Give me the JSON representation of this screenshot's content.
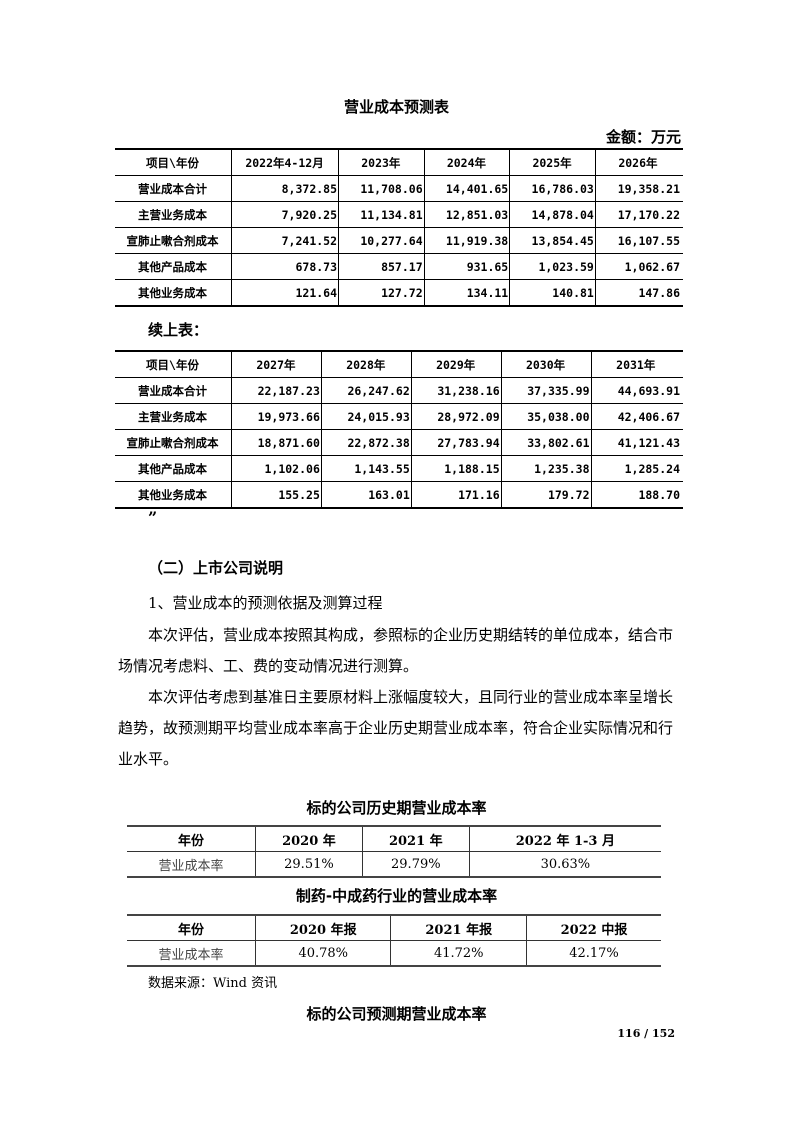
{
  "table1": {
    "title": "营业成本预测表",
    "unit": "金额：万元",
    "header": [
      "项目\\年份",
      "2022年4-12月",
      "2023年",
      "2024年",
      "2025年",
      "2026年"
    ],
    "rows": [
      [
        "营业成本合计",
        "8,372.85",
        "11,708.06",
        "14,401.65",
        "16,786.03",
        "19,358.21"
      ],
      [
        "主营业务成本",
        "7,920.25",
        "11,134.81",
        "12,851.03",
        "14,878.04",
        "17,170.22"
      ],
      [
        "宣肺止嗽合剂成本",
        "7,241.52",
        "10,277.64",
        "11,919.38",
        "13,854.45",
        "16,107.55"
      ],
      [
        "其他产品成本",
        "678.73",
        "857.17",
        "931.65",
        "1,023.59",
        "1,062.67"
      ],
      [
        "其他业务成本",
        "121.64",
        "127.72",
        "134.11",
        "140.81",
        "147.86"
      ]
    ]
  },
  "continued_label": "续上表：",
  "table2": {
    "header": [
      "项目\\年份",
      "2027年",
      "2028年",
      "2029年",
      "2030年",
      "2031年"
    ],
    "rows": [
      [
        "营业成本合计",
        "22,187.23",
        "26,247.62",
        "31,238.16",
        "37,335.99",
        "44,693.91"
      ],
      [
        "主营业务成本",
        "19,973.66",
        "24,015.93",
        "28,972.09",
        "35,038.00",
        "42,406.67"
      ],
      [
        "宣肺止嗽合剂成本",
        "18,871.60",
        "22,872.38",
        "27,783.94",
        "33,802.61",
        "41,121.43"
      ],
      [
        "其他产品成本",
        "1,102.06",
        "1,143.55",
        "1,188.15",
        "1,235.38",
        "1,285.24"
      ],
      [
        "其他业务成本",
        "155.25",
        "163.01",
        "171.16",
        "179.72",
        "188.70"
      ]
    ]
  },
  "closing_quote": "”",
  "section": {
    "heading": "（二）上市公司说明",
    "sub": "1、营业成本的预测依据及测算过程",
    "para1": "本次评估，营业成本按照其构成，参照标的企业历史期结转的单位成本，结合市场情况考虑料、工、费的变动情况进行测算。",
    "para2": "本次评估考虑到基准日主要原材料上涨幅度较大，且同行业的营业成本率呈增长趋势，故预测期平均营业成本率高于企业历史期营业成本率，符合企业实际情况和行业水平。"
  },
  "table3": {
    "title": "标的公司历史期营业成本率",
    "header": [
      "年份",
      "2020 年",
      "2021 年",
      "2022 年 1-3 月"
    ],
    "rows": [
      [
        "营业成本率",
        "29.51%",
        "29.79%",
        "30.63%"
      ]
    ]
  },
  "table4": {
    "title": "制药-中成药行业的营业成本率",
    "header": [
      "年份",
      "2020 年报",
      "2021 年报",
      "2022 中报"
    ],
    "rows": [
      [
        "营业成本率",
        "40.78%",
        "41.72%",
        "42.17%"
      ]
    ]
  },
  "source": "数据来源：Wind 资讯",
  "table5_title": "标的公司预测期营业成本率",
  "page_number": "116 / 152"
}
